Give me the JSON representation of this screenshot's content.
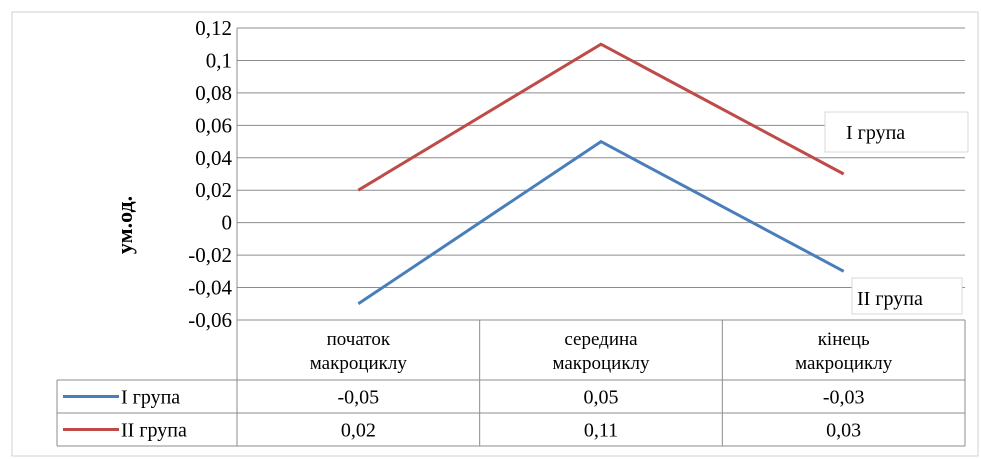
{
  "chart_data": {
    "type": "line",
    "ylabel": "ум.од.",
    "ylim": [
      -0.06,
      0.12
    ],
    "yticks": [
      0.12,
      0.1,
      0.08,
      0.06,
      0.04,
      0.02,
      0,
      -0.02,
      -0.04,
      -0.06
    ],
    "ytick_labels": [
      "0,12",
      "0,1",
      "0,08",
      "0,06",
      "0,04",
      "0,02",
      "0",
      "-0,02",
      "-0,04",
      "-0,06"
    ],
    "grid": true,
    "categories": [
      [
        "початок",
        "макроциклу"
      ],
      [
        "середина",
        "макроциклу"
      ],
      [
        "кінець",
        "макроциклу"
      ]
    ],
    "series": [
      {
        "name": "I група",
        "values": [
          -0.05,
          0.05,
          -0.03
        ],
        "labels": [
          "-0,05",
          "0,05",
          "-0,03"
        ],
        "color": "#4a7ebb"
      },
      {
        "name": "II група",
        "values": [
          0.02,
          0.11,
          0.03
        ],
        "labels": [
          "0,02",
          "0,11",
          "0,03"
        ],
        "color": "#be4b48"
      }
    ],
    "annotations": [
      "II група",
      "I група"
    ],
    "data_table": true
  }
}
